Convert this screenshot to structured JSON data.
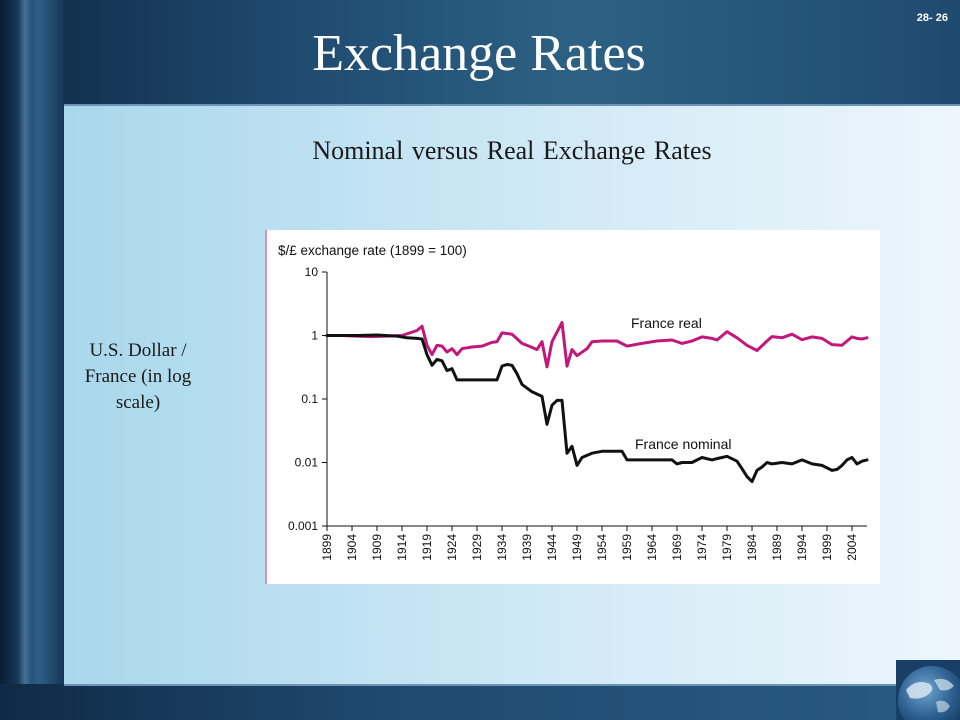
{
  "slide": {
    "title": "Exchange Rates",
    "number": "28- 26",
    "subtitle": "Nominal versus Real Exchange Rates",
    "y_note": "U.S. Dollar / France (in log scale)"
  },
  "colors": {
    "real_series": "#c2187a",
    "nominal_series": "#111111"
  },
  "chart_data": {
    "type": "line",
    "title": "$/£ exchange rate (1899 = 100)",
    "xlabel": "",
    "ylabel": "",
    "yscale": "log",
    "ylim": [
      0.001,
      10
    ],
    "xlim": [
      1899,
      2007
    ],
    "y_ticks": [
      "10",
      "1",
      "0.1",
      "0.01",
      "0.001"
    ],
    "y_tick_values": [
      10,
      1,
      0.1,
      0.01,
      0.001
    ],
    "x_ticks": [
      "1899",
      "1904",
      "1909",
      "1914",
      "1919",
      "1924",
      "1929",
      "1934",
      "1939",
      "1944",
      "1949",
      "1954",
      "1959",
      "1964",
      "1969",
      "1974",
      "1979",
      "1984",
      "1989",
      "1994",
      "1999",
      "2004"
    ],
    "grid": false,
    "series": [
      {
        "name": "France real",
        "points": [
          [
            1899,
            1.0
          ],
          [
            1902,
            1.0
          ],
          [
            1905,
            0.98
          ],
          [
            1908,
            0.96
          ],
          [
            1911,
            0.98
          ],
          [
            1914,
            1.0
          ],
          [
            1917,
            1.2
          ],
          [
            1918,
            1.4
          ],
          [
            1919,
            0.7
          ],
          [
            1920,
            0.5
          ],
          [
            1921,
            0.7
          ],
          [
            1922,
            0.68
          ],
          [
            1923,
            0.55
          ],
          [
            1924,
            0.62
          ],
          [
            1925,
            0.5
          ],
          [
            1926,
            0.62
          ],
          [
            1928,
            0.66
          ],
          [
            1930,
            0.68
          ],
          [
            1932,
            0.78
          ],
          [
            1933,
            0.8
          ],
          [
            1934,
            1.1
          ],
          [
            1936,
            1.05
          ],
          [
            1938,
            0.75
          ],
          [
            1940,
            0.65
          ],
          [
            1941,
            0.6
          ],
          [
            1942,
            0.8
          ],
          [
            1943,
            0.32
          ],
          [
            1944,
            0.8
          ],
          [
            1946,
            1.6
          ],
          [
            1947,
            0.33
          ],
          [
            1948,
            0.6
          ],
          [
            1949,
            0.48
          ],
          [
            1951,
            0.62
          ],
          [
            1952,
            0.8
          ],
          [
            1954,
            0.82
          ],
          [
            1957,
            0.82
          ],
          [
            1959,
            0.68
          ],
          [
            1962,
            0.75
          ],
          [
            1965,
            0.82
          ],
          [
            1968,
            0.85
          ],
          [
            1970,
            0.75
          ],
          [
            1972,
            0.82
          ],
          [
            1974,
            0.95
          ],
          [
            1976,
            0.9
          ],
          [
            1977,
            0.85
          ],
          [
            1979,
            1.15
          ],
          [
            1981,
            0.92
          ],
          [
            1983,
            0.7
          ],
          [
            1985,
            0.58
          ],
          [
            1987,
            0.82
          ],
          [
            1988,
            0.96
          ],
          [
            1990,
            0.92
          ],
          [
            1992,
            1.05
          ],
          [
            1994,
            0.86
          ],
          [
            1996,
            0.95
          ],
          [
            1998,
            0.9
          ],
          [
            2000,
            0.72
          ],
          [
            2002,
            0.7
          ],
          [
            2003,
            0.82
          ],
          [
            2004,
            0.95
          ],
          [
            2005,
            0.9
          ],
          [
            2006,
            0.88
          ],
          [
            2007,
            0.92
          ]
        ]
      },
      {
        "name": "France nominal",
        "points": [
          [
            1899,
            1.0
          ],
          [
            1905,
            1.0
          ],
          [
            1909,
            1.02
          ],
          [
            1913,
            0.98
          ],
          [
            1915,
            0.92
          ],
          [
            1917,
            0.9
          ],
          [
            1918,
            0.88
          ],
          [
            1919,
            0.5
          ],
          [
            1920,
            0.34
          ],
          [
            1921,
            0.42
          ],
          [
            1922,
            0.4
          ],
          [
            1923,
            0.28
          ],
          [
            1924,
            0.3
          ],
          [
            1925,
            0.2
          ],
          [
            1926,
            0.2
          ],
          [
            1928,
            0.2
          ],
          [
            1930,
            0.2
          ],
          [
            1932,
            0.2
          ],
          [
            1933,
            0.2
          ],
          [
            1934,
            0.33
          ],
          [
            1935,
            0.35
          ],
          [
            1936,
            0.34
          ],
          [
            1937,
            0.25
          ],
          [
            1938,
            0.17
          ],
          [
            1940,
            0.13
          ],
          [
            1942,
            0.11
          ],
          [
            1943,
            0.04
          ],
          [
            1944,
            0.08
          ],
          [
            1945,
            0.095
          ],
          [
            1946,
            0.095
          ],
          [
            1947,
            0.014
          ],
          [
            1948,
            0.018
          ],
          [
            1949,
            0.009
          ],
          [
            1950,
            0.012
          ],
          [
            1952,
            0.014
          ],
          [
            1954,
            0.015
          ],
          [
            1956,
            0.015
          ],
          [
            1958,
            0.015
          ],
          [
            1959,
            0.011
          ],
          [
            1962,
            0.011
          ],
          [
            1965,
            0.011
          ],
          [
            1968,
            0.011
          ],
          [
            1969,
            0.0095
          ],
          [
            1970,
            0.01
          ],
          [
            1972,
            0.01
          ],
          [
            1974,
            0.012
          ],
          [
            1976,
            0.011
          ],
          [
            1977,
            0.0115
          ],
          [
            1978,
            0.012
          ],
          [
            1979,
            0.0125
          ],
          [
            1981,
            0.0105
          ],
          [
            1982,
            0.008
          ],
          [
            1983,
            0.006
          ],
          [
            1984,
            0.005
          ],
          [
            1985,
            0.0075
          ],
          [
            1986,
            0.0085
          ],
          [
            1987,
            0.01
          ],
          [
            1988,
            0.0095
          ],
          [
            1990,
            0.01
          ],
          [
            1992,
            0.0095
          ],
          [
            1994,
            0.011
          ],
          [
            1996,
            0.0095
          ],
          [
            1998,
            0.009
          ],
          [
            2000,
            0.0075
          ],
          [
            2001,
            0.0078
          ],
          [
            2002,
            0.009
          ],
          [
            2003,
            0.011
          ],
          [
            2004,
            0.012
          ],
          [
            2005,
            0.0095
          ],
          [
            2006,
            0.0105
          ],
          [
            2007,
            0.011
          ]
        ]
      }
    ]
  }
}
